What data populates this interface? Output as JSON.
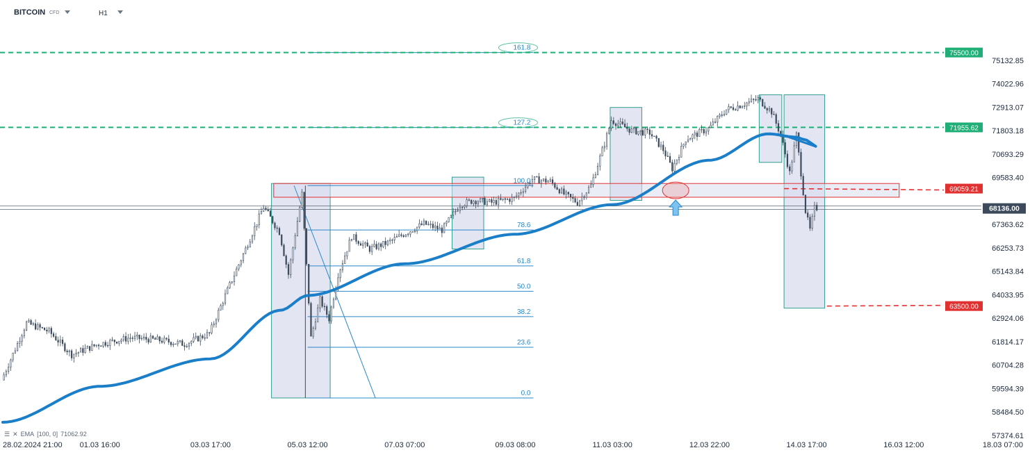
{
  "header": {
    "symbol": "BITCOIN",
    "symbol_type": "CFD",
    "timeframe": "H1"
  },
  "indicator": {
    "icon_menu": "menu-icon",
    "icon_close": "close-icon",
    "label": "EMA",
    "params": "[100, 0]",
    "value": "71062.92"
  },
  "colors": {
    "candle": "#3c4a5c",
    "ema": "#1a7ec8",
    "fib": "#2a88c8",
    "box_fill": "#d9dcee",
    "box_stroke": "#2e9e8e",
    "green_line": "#1fae75",
    "red": "#e03030"
  },
  "chart_data": {
    "type": "candlestick",
    "instrument": "BITCOIN",
    "timeframe": "H1",
    "x_tick_labels": [
      "28.02.2024 21:00",
      "01.03 16:00",
      "03.03 17:00",
      "05.03 12:00",
      "07.03 07:00",
      "09.03 08:00",
      "11.03 03:00",
      "12.03 22:00",
      "14.03 17:00",
      "16.03 12:00",
      "18.03 07:00"
    ],
    "y_tick_labels": [
      "75132.85",
      "74022.96",
      "72913.07",
      "71803.18",
      "70693.29",
      "69583.40",
      "67363.62",
      "66253.73",
      "65143.84",
      "64033.95",
      "62924.06",
      "61814.17",
      "60704.28",
      "59594.39",
      "58484.50",
      "57374.61"
    ],
    "ylim": [
      57374.61,
      76242.74
    ],
    "price_path": [
      [
        "28.02.2024 21:00",
        60000
      ],
      [
        "29.02 08:00",
        62700
      ],
      [
        "29.02 18:00",
        62300
      ],
      [
        "01.03 04:00",
        61200
      ],
      [
        "01.03 16:00",
        61700
      ],
      [
        "02.03 06:00",
        62000
      ],
      [
        "02.03 18:00",
        61900
      ],
      [
        "03.03 06:00",
        61700
      ],
      [
        "03.03 17:00",
        62200
      ],
      [
        "04.03 00:00",
        64000
      ],
      [
        "04.03 09:00",
        66200
      ],
      [
        "04.03 17:00",
        68200
      ],
      [
        "05.03 00:00",
        67000
      ],
      [
        "05.03 04:00",
        65000
      ],
      [
        "05.03 10:00",
        68800
      ],
      [
        "05.03 14:00",
        62000
      ],
      [
        "05.03 18:00",
        63800
      ],
      [
        "05.03 22:00",
        62900
      ],
      [
        "06.03 02:00",
        65000
      ],
      [
        "06.03 08:00",
        66800
      ],
      [
        "06.03 16:00",
        66200
      ],
      [
        "07.03 00:00",
        66500
      ],
      [
        "07.03 07:00",
        66900
      ],
      [
        "07.03 16:00",
        67400
      ],
      [
        "08.03 00:00",
        67100
      ],
      [
        "08.03 08:00",
        68300
      ],
      [
        "08.03 14:00",
        68500
      ],
      [
        "08.03 22:00",
        68400
      ],
      [
        "09.03 08:00",
        68600
      ],
      [
        "09.03 16:00",
        69500
      ],
      [
        "10.03 00:00",
        69400
      ],
      [
        "10.03 06:00",
        68800
      ],
      [
        "10.03 12:00",
        68400
      ],
      [
        "10.03 18:00",
        69200
      ],
      [
        "11.03 00:00",
        71200
      ],
      [
        "11.03 03:00",
        72300
      ],
      [
        "11.03 12:00",
        71800
      ],
      [
        "11.03 20:00",
        71700
      ],
      [
        "12.03 02:00",
        70900
      ],
      [
        "12.03 06:00",
        70000
      ],
      [
        "12.03 12:00",
        71400
      ],
      [
        "12.03 22:00",
        71900
      ],
      [
        "13.03 06:00",
        72800
      ],
      [
        "13.03 12:00",
        73000
      ],
      [
        "13.03 20:00",
        73300
      ],
      [
        "14.03 02:00",
        72700
      ],
      [
        "14.03 06:00",
        71600
      ],
      [
        "14.03 10:00",
        69800
      ],
      [
        "14.03 13:00",
        71600
      ],
      [
        "14.03 17:00",
        68000
      ],
      [
        "14.03 19:00",
        67100
      ],
      [
        "14.03 21:00",
        68136
      ]
    ],
    "ema": {
      "name": "EMA (100)",
      "points": [
        [
          "28.02.2024 21:00",
          58000
        ],
        [
          "01.03 16:00",
          59700
        ],
        [
          "03.03 17:00",
          61000
        ],
        [
          "05.03 00:00",
          63300
        ],
        [
          "05.03 12:00",
          64000
        ],
        [
          "07.03 07:00",
          65500
        ],
        [
          "09.03 08:00",
          66900
        ],
        [
          "11.03 03:00",
          68300
        ],
        [
          "12.03 22:00",
          70400
        ],
        [
          "14.03 00:00",
          71650
        ],
        [
          "14.03 12:00",
          71500
        ],
        [
          "14.03 17:00",
          71350
        ],
        [
          "14.03 21:00",
          71062.92
        ]
      ]
    },
    "horizontal_levels": [
      {
        "price": 75500.0,
        "label": "75500.00",
        "color": "#1fae75",
        "style": "dashed"
      },
      {
        "price": 71955.62,
        "label": "71955.62",
        "color": "#1fae75",
        "style": "dashed"
      },
      {
        "price": 69059.21,
        "label": "69059.21",
        "color": "#e03030",
        "style": "dashed"
      },
      {
        "price": 63500.0,
        "label": "63500.00",
        "color": "#e03030",
        "style": "dashed"
      }
    ],
    "current_price": 68136.0,
    "fibonacci": {
      "levels": [
        {
          "ratio": "0.0",
          "price": 59150
        },
        {
          "ratio": "23.6",
          "price": 61550
        },
        {
          "ratio": "38.2",
          "price": 63000
        },
        {
          "ratio": "50.0",
          "price": 64200
        },
        {
          "ratio": "61.8",
          "price": 65400
        },
        {
          "ratio": "78.6",
          "price": 67100
        },
        {
          "ratio": "100.0",
          "price": 69200
        },
        {
          "ratio": "127.2",
          "price": 71950
        },
        {
          "ratio": "161.8",
          "price": 75500
        }
      ]
    },
    "zones": [
      {
        "from": "04.03 20:00",
        "to": "05.03 22:00",
        "high": 69300,
        "low": 59150
      },
      {
        "from": "08.03 04:00",
        "to": "08.03 18:00",
        "high": 69600,
        "low": 66200
      },
      {
        "from": "11.03 02:00",
        "to": "11.03 16:00",
        "high": 72900,
        "low": 68500
      },
      {
        "from": "13.03 20:00",
        "to": "14.03 06:00",
        "high": 73500,
        "low": 70300
      },
      {
        "from": "14.03 07:00",
        "to": "15.03 01:00",
        "high": 73500,
        "low": 63400
      }
    ],
    "resistance_band": {
      "from": "04.03 21:00",
      "to": "16.03 10:00",
      "high": 69300,
      "low": 68650
    }
  }
}
